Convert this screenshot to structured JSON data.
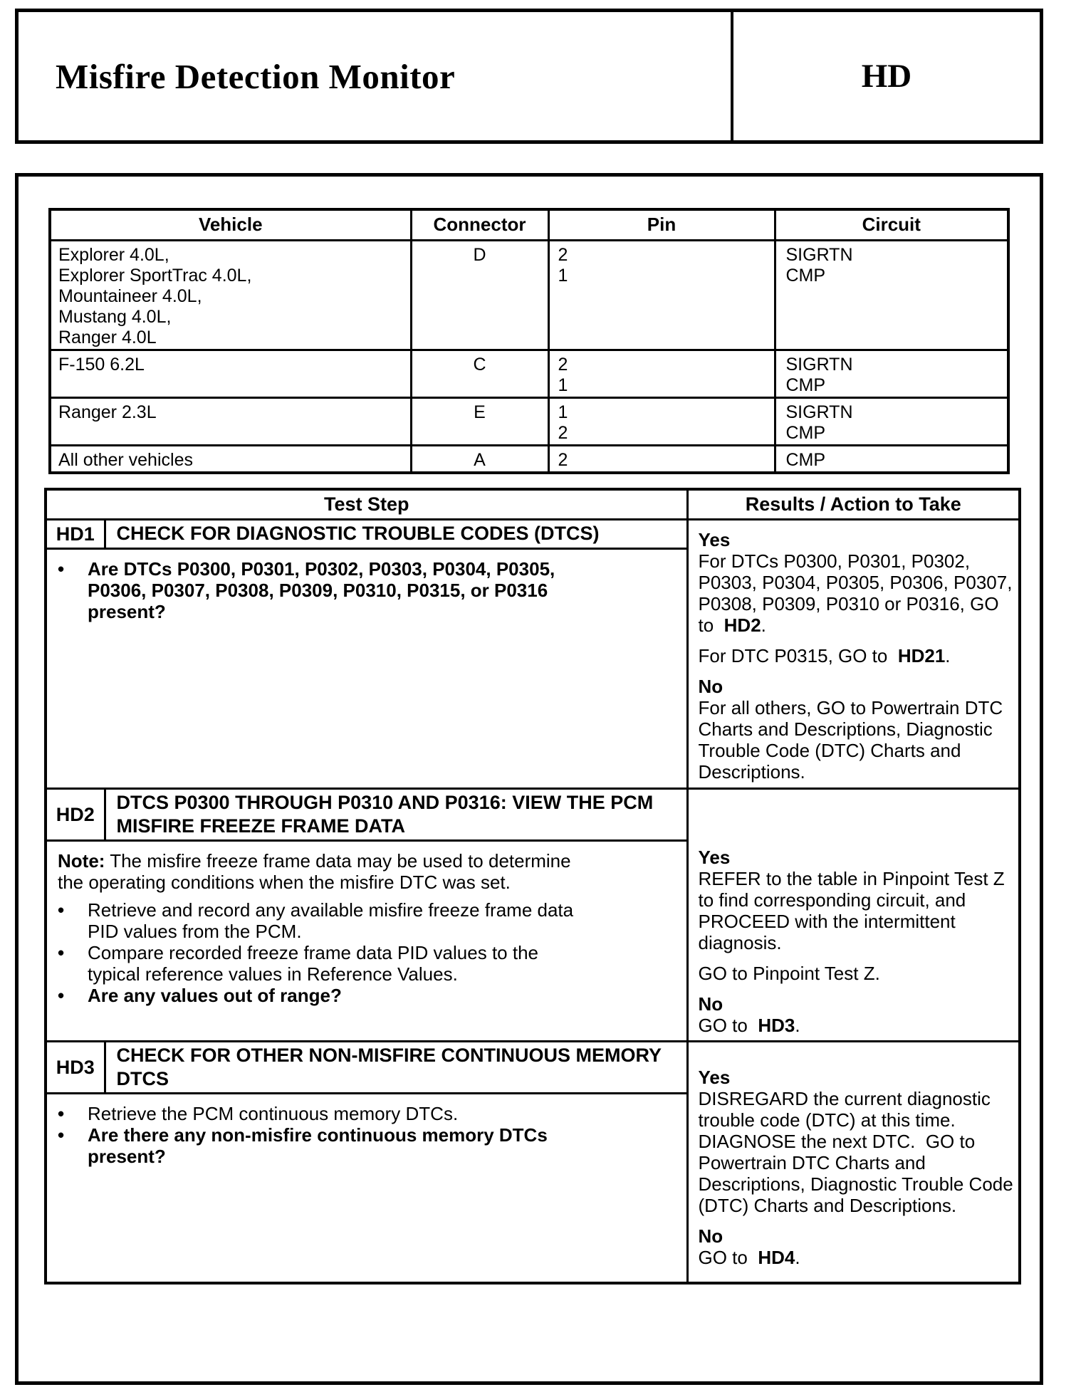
{
  "header": {
    "title": "Misfire Detection Monitor",
    "code": "HD"
  },
  "vehicle_table": {
    "columns": [
      "Vehicle",
      "Connector",
      "Pin",
      "Circuit"
    ],
    "rows": [
      {
        "vehicle": [
          "Explorer 4.0L,",
          "Explorer SportTrac 4.0L,",
          "Mountaineer 4.0L,",
          "Mustang 4.0L,",
          "Ranger 4.0L"
        ],
        "connector": "D",
        "pins": [
          "2",
          "1"
        ],
        "circuits": [
          "SIGRTN",
          "CMP"
        ]
      },
      {
        "vehicle": [
          "F-150 6.2L"
        ],
        "connector": "C",
        "pins": [
          "2",
          "1"
        ],
        "circuits": [
          "SIGRTN",
          "CMP"
        ]
      },
      {
        "vehicle": [
          "Ranger 2.3L"
        ],
        "connector": "E",
        "pins": [
          "1",
          "2"
        ],
        "circuits": [
          "SIGRTN",
          "CMP"
        ]
      },
      {
        "vehicle": [
          "All other vehicles"
        ],
        "connector": "A",
        "pins": [
          "2"
        ],
        "circuits": [
          "CMP"
        ]
      }
    ]
  },
  "test_table": {
    "col_test_step": "Test Step",
    "col_results": "Results / Action to Take",
    "sections": [
      {
        "id": "HD1",
        "title": "CHECK FOR DIAGNOSTIC TROUBLE CODES (DTCS)",
        "bullet1": [
          {
            "t": "Are DTCs P0300, P0301, P0302, P0303, P0304, P0305, P0306, P0307, P0308, P0309, P0310, P0315, or P0316 present?",
            "b": true
          }
        ],
        "results": {
          "yes_label": "Yes",
          "p1": [
            {
              "t": "For DTCs P0300, P0301, P0302, P0303, P0304, P0305, P0306, P0307, P0308, P0309, P0310 or P0316, GO to  "
            },
            {
              "t": "HD2",
              "b": true
            },
            {
              "t": "."
            }
          ],
          "p2": [
            {
              "t": "For DTC P0315, GO to  "
            },
            {
              "t": "HD21",
              "b": true
            },
            {
              "t": "."
            }
          ],
          "no_label": "No",
          "p3": [
            {
              "t": "For all others, GO to Powertrain DTC Charts and Descriptions, Diagnostic Trouble Code (DTC) Charts and Descriptions."
            }
          ]
        }
      },
      {
        "id": "HD2",
        "title": "DTCS P0300 THROUGH P0310 AND P0316: VIEW THE PCM MISFIRE FREEZE FRAME DATA",
        "note": [
          {
            "t": "Note:",
            "b": true
          },
          {
            "t": " The misfire freeze frame data may be used to determine the operating conditions when the misfire DTC was set."
          }
        ],
        "bullet1": [
          {
            "t": "Retrieve and record any available misfire freeze frame data PID values from the PCM."
          }
        ],
        "bullet2": [
          {
            "t": "Compare recorded freeze frame data PID values to the typical reference values in Reference Values."
          }
        ],
        "bullet3": [
          {
            "t": "Are any values out of range?",
            "b": true
          }
        ],
        "results": {
          "yes_label": "Yes",
          "p1": [
            {
              "t": "REFER to the table in Pinpoint Test Z to find corresponding circuit, and PROCEED with the intermittent diagnosis."
            }
          ],
          "p2": [
            {
              "t": "GO to Pinpoint Test Z."
            }
          ],
          "no_label": "No",
          "p3": [
            {
              "t": "GO to  "
            },
            {
              "t": "HD3",
              "b": true
            },
            {
              "t": "."
            }
          ]
        }
      },
      {
        "id": "HD3",
        "title": "CHECK FOR OTHER NON-MISFIRE CONTINUOUS MEMORY DTCS",
        "bullet1": [
          {
            "t": "Retrieve the PCM continuous memory DTCs."
          }
        ],
        "bullet2": [
          {
            "t": "Are there any non-misfire continuous memory DTCs present?",
            "b": true
          }
        ],
        "results": {
          "yes_label": "Yes",
          "p1": [
            {
              "t": "DISREGARD the current diagnostic trouble code (DTC) at this time. DIAGNOSE the next DTC.  GO to Powertrain DTC Charts and Descriptions, Diagnostic Trouble Code (DTC) Charts and Descriptions."
            }
          ],
          "no_label": "No",
          "p2": [
            {
              "t": "GO to  "
            },
            {
              "t": "HD4",
              "b": true
            },
            {
              "t": "."
            }
          ]
        }
      }
    ]
  }
}
